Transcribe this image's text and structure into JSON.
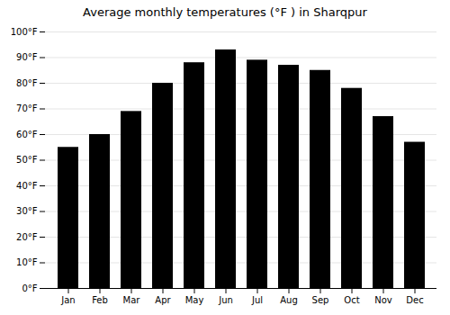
{
  "chart_data": {
    "type": "bar",
    "title": "Average monthly temperatures (°F ) in Sharqpur",
    "categories": [
      "Jan",
      "Feb",
      "Mar",
      "Apr",
      "May",
      "Jun",
      "Jul",
      "Aug",
      "Sep",
      "Oct",
      "Nov",
      "Dec"
    ],
    "values": [
      55,
      60,
      69,
      80,
      88,
      93,
      89,
      87,
      85,
      78,
      67,
      57
    ],
    "ylim": [
      0,
      100
    ],
    "yticks": [
      {
        "value": 0,
        "label": "0°F"
      },
      {
        "value": 10,
        "label": "10°F"
      },
      {
        "value": 20,
        "label": "20°F"
      },
      {
        "value": 30,
        "label": "30°F"
      },
      {
        "value": 40,
        "label": "40°F"
      },
      {
        "value": 50,
        "label": "50°F"
      },
      {
        "value": 60,
        "label": "60°F"
      },
      {
        "value": 70,
        "label": "70°F"
      },
      {
        "value": 80,
        "label": "80°F"
      },
      {
        "value": 90,
        "label": "90°F"
      },
      {
        "value": 100,
        "label": "100°F"
      }
    ],
    "grid": true
  }
}
